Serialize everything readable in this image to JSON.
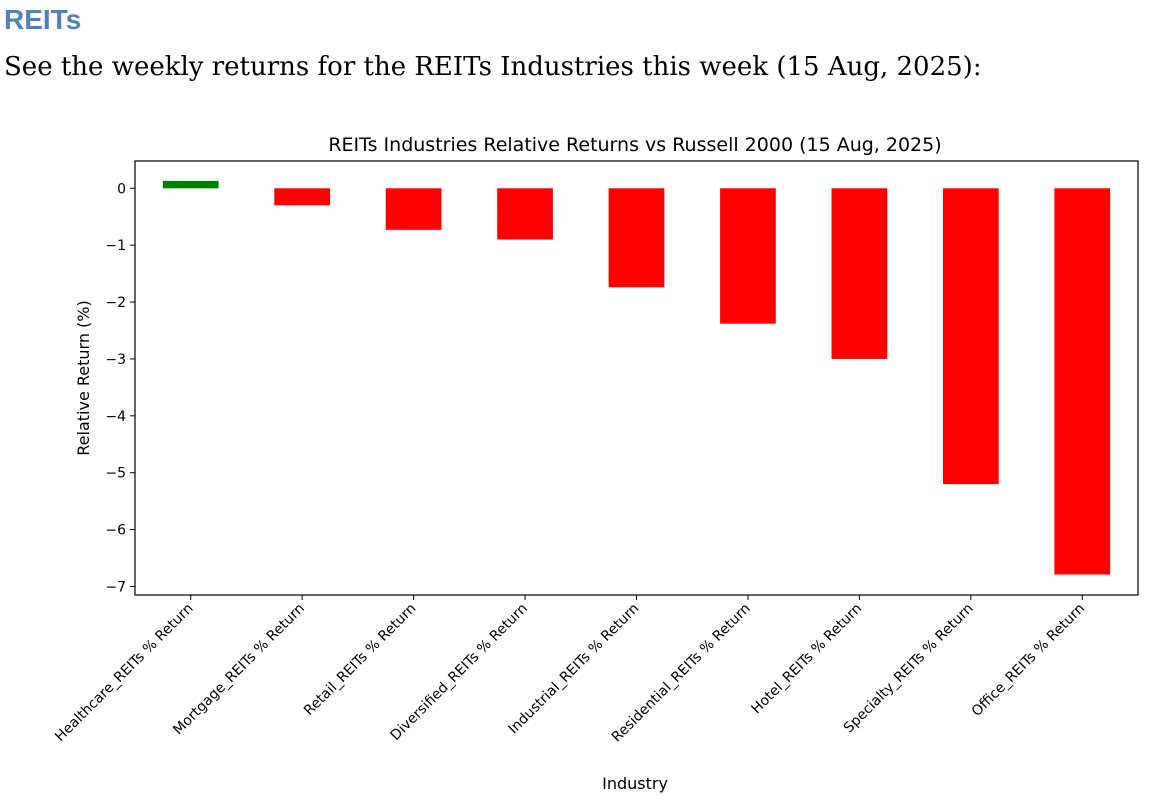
{
  "page": {
    "heading": "REITs",
    "intro": "See the weekly returns for the REITs Industries this week (15 Aug, 2025):"
  },
  "colors": {
    "positive": "#008000",
    "negative": "#ff0000",
    "axis": "#000000"
  },
  "chart_data": {
    "type": "bar",
    "title": "REITs Industries Relative Returns vs Russell 2000 (15 Aug, 2025)",
    "xlabel": "Industry",
    "ylabel": "Relative Return (%)",
    "categories": [
      "Healthcare_REITs % Return",
      "Mortgage_REITs % Return",
      "Retail_REITs % Return",
      "Diversified_REITs % Return",
      "Industrial_REITs % Return",
      "Residential_REITs % Return",
      "Hotel_REITs % Return",
      "Specialty_REITs % Return",
      "Office_REITs % Return"
    ],
    "values": [
      0.13,
      -0.3,
      -0.73,
      -0.9,
      -1.74,
      -2.38,
      -3.0,
      -5.2,
      -6.79
    ],
    "yticks": [
      0,
      -1,
      -2,
      -3,
      -4,
      -5,
      -6,
      -7
    ],
    "ytick_labels": [
      "0",
      "−1",
      "−2",
      "−3",
      "−4",
      "−5",
      "−6",
      "−7"
    ],
    "ylim": [
      -7.15,
      0.48
    ],
    "grid": false,
    "legend": null
  }
}
